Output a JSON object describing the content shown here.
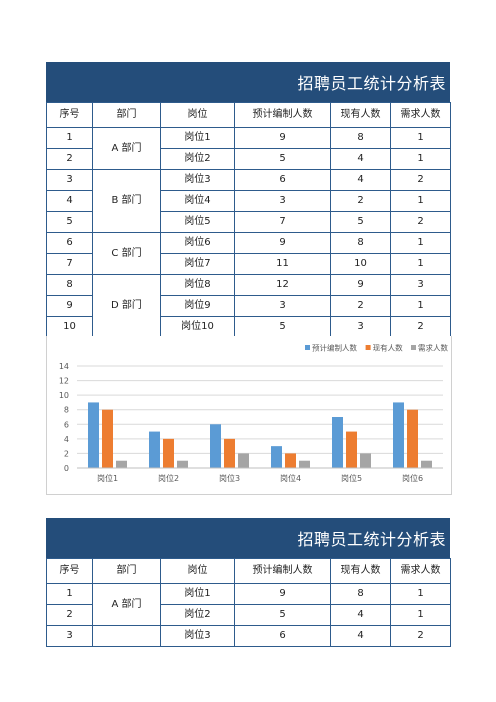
{
  "table1": {
    "title": "招聘员工统计分析表",
    "headers": [
      "序号",
      "部门",
      "岗位",
      "预计编制人数",
      "现有人数",
      "需求人数"
    ],
    "groups": [
      {
        "dept": "A 部门",
        "rows": [
          {
            "no": "1",
            "post": "岗位1",
            "planned": "9",
            "current": "8",
            "need": "1"
          },
          {
            "no": "2",
            "post": "岗位2",
            "planned": "5",
            "current": "4",
            "need": "1"
          }
        ]
      },
      {
        "dept": "B 部门",
        "rows": [
          {
            "no": "3",
            "post": "岗位3",
            "planned": "6",
            "current": "4",
            "need": "2"
          },
          {
            "no": "4",
            "post": "岗位4",
            "planned": "3",
            "current": "2",
            "need": "1"
          },
          {
            "no": "5",
            "post": "岗位5",
            "planned": "7",
            "current": "5",
            "need": "2"
          }
        ]
      },
      {
        "dept": "C 部门",
        "rows": [
          {
            "no": "6",
            "post": "岗位6",
            "planned": "9",
            "current": "8",
            "need": "1"
          },
          {
            "no": "7",
            "post": "岗位7",
            "planned": "11",
            "current": "10",
            "need": "1"
          }
        ]
      },
      {
        "dept": "D 部门",
        "rows": [
          {
            "no": "8",
            "post": "岗位8",
            "planned": "12",
            "current": "9",
            "need": "3"
          },
          {
            "no": "9",
            "post": "岗位9",
            "planned": "3",
            "current": "2",
            "need": "1"
          },
          {
            "no": "10",
            "post": "岗位10",
            "planned": "5",
            "current": "3",
            "need": "2"
          }
        ]
      }
    ]
  },
  "chart_data": {
    "type": "bar",
    "categories": [
      "岗位1",
      "岗位2",
      "岗位3",
      "岗位4",
      "岗位5",
      "岗位6"
    ],
    "series": [
      {
        "name": "预计编制人数",
        "values": [
          9,
          5,
          6,
          3,
          7,
          9
        ],
        "color": "#5b9bd5"
      },
      {
        "name": "现有人数",
        "values": [
          8,
          4,
          4,
          2,
          5,
          8
        ],
        "color": "#ed7d31"
      },
      {
        "name": "需求人数",
        "values": [
          1,
          1,
          2,
          1,
          2,
          1
        ],
        "color": "#a5a5a5"
      }
    ],
    "ylim": [
      0,
      14
    ],
    "yticks": [
      "0",
      "2",
      "4",
      "6",
      "8",
      "10",
      "12",
      "14"
    ],
    "grid": true,
    "legend": "top-right"
  },
  "table2": {
    "title": "招聘员工统计分析表",
    "headers": [
      "序号",
      "部门",
      "岗位",
      "预计编制人数",
      "现有人数",
      "需求人数"
    ],
    "groups": [
      {
        "dept": "A 部门",
        "rows": [
          {
            "no": "1",
            "post": "岗位1",
            "planned": "9",
            "current": "8",
            "need": "1"
          },
          {
            "no": "2",
            "post": "岗位2",
            "planned": "5",
            "current": "4",
            "need": "1"
          }
        ]
      },
      {
        "dept": "",
        "rows": [
          {
            "no": "3",
            "post": "岗位3",
            "planned": "6",
            "current": "4",
            "need": "2"
          }
        ]
      }
    ]
  }
}
